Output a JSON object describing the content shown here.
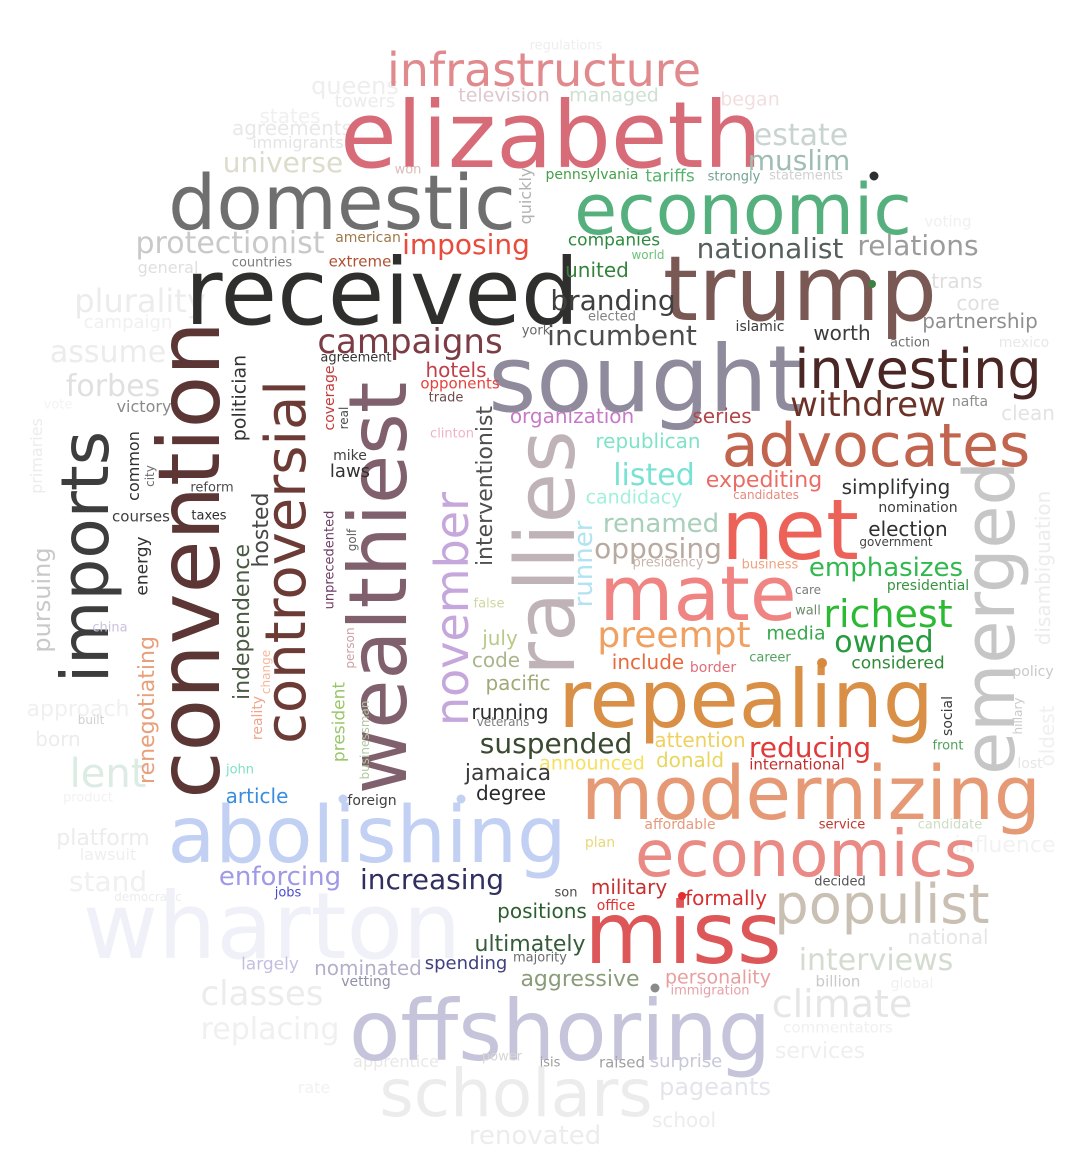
{
  "words": {
    "infrastructure": {
      "text": "infrastructure",
      "color": "#e08a8e"
    },
    "elizabeth": {
      "text": "elizabeth",
      "color": "#d86b78"
    },
    "domestic": {
      "text": "domestic",
      "color": "#6f6f6f"
    },
    "economic": {
      "text": "economic",
      "color": "#56b07d"
    },
    "received": {
      "text": "received",
      "color": "#2f302d"
    },
    "trump": {
      "text": "trump",
      "color": "#7a5854"
    },
    "sought": {
      "text": "sought",
      "color": "#8f8a9c"
    },
    "investing": {
      "text": "investing",
      "color": "#4a2724"
    },
    "advocates": {
      "text": "advocates",
      "color": "#c1654f"
    },
    "convention": {
      "text": "convention",
      "color": "#5b3634"
    },
    "imports": {
      "text": "imports",
      "color": "#3d3d3d"
    },
    "controversial": {
      "text": "controversial",
      "color": "#6c3b35"
    },
    "wealthiest": {
      "text": "wealthiest",
      "color": "#80606c"
    },
    "november": {
      "text": "november",
      "color": "#c6a7dc"
    },
    "rallies": {
      "text": "rallies",
      "color": "#bfb3b7"
    },
    "emerged": {
      "text": "emerged",
      "color": "#c6c6c6"
    },
    "net": {
      "text": "net",
      "color": "#ec6259"
    },
    "mate": {
      "text": "mate",
      "color": "#f08483"
    },
    "repealing": {
      "text": "repealing",
      "color": "#d98f46"
    },
    "modernizing": {
      "text": "modernizing",
      "color": "#e69975"
    },
    "abolishing": {
      "text": "abolishing",
      "color": "#c2d0f3"
    },
    "economics": {
      "text": "economics",
      "color": "#ea8a84"
    },
    "wharton": {
      "text": "wharton",
      "color": "#f0f0f8"
    },
    "miss": {
      "text": "miss",
      "color": "#dd5658"
    },
    "populist": {
      "text": "populist",
      "color": "#c9c0b3"
    },
    "offshoring": {
      "text": "offshoring",
      "color": "#c5c4da"
    },
    "scholars": {
      "text": "scholars",
      "color": "#ececec"
    },
    "protectionist": {
      "text": "protectionist",
      "color": "#c9c9c9"
    },
    "imposing": {
      "text": "imposing",
      "color": "#e74c3c"
    },
    "nationalist": {
      "text": "nationalist",
      "color": "#555f5c"
    },
    "relations": {
      "text": "relations",
      "color": "#9c9c9c"
    },
    "branding": {
      "text": "branding",
      "color": "#3f3f3f"
    },
    "incumbent": {
      "text": "incumbent",
      "color": "#4d4d4d"
    },
    "campaigns": {
      "text": "campaigns",
      "color": "#7b3c44"
    },
    "withdrew": {
      "text": "withdrew",
      "color": "#6b3228"
    },
    "queens": {
      "text": "queens",
      "color": "#eeeeee"
    },
    "towers": {
      "text": "towers",
      "color": "#ececec"
    },
    "regulations": {
      "text": "regulations",
      "color": "#eeeeee"
    },
    "television": {
      "text": "television",
      "color": "#dcc8cc"
    },
    "managed": {
      "text": "managed",
      "color": "#cfe0d2"
    },
    "began": {
      "text": "began",
      "color": "#f3dede"
    },
    "states": {
      "text": "states",
      "color": "#f0f0f0"
    },
    "agreements": {
      "text": "agreements",
      "color": "#e8e8e8"
    },
    "immigrants": {
      "text": "immigrants",
      "color": "#e4e4e4"
    },
    "estate": {
      "text": "estate",
      "color": "#c8d4d0"
    },
    "muslim": {
      "text": "muslim",
      "color": "#9fbdb0"
    },
    "universe": {
      "text": "universe",
      "color": "#dcdccc"
    },
    "won": {
      "text": "won",
      "color": "#d9bcb8"
    },
    "quickly": {
      "text": "quickly",
      "color": "#b1b1b1"
    },
    "pennsylvania": {
      "text": "pennsylvania",
      "color": "#45a046"
    },
    "tariffs": {
      "text": "tariffs",
      "color": "#56b36b"
    },
    "strongly": {
      "text": "strongly",
      "color": "#73a28f"
    },
    "statements": {
      "text": "statements",
      "color": "#d0d0d0"
    },
    "american": {
      "text": "american",
      "color": "#a0784a"
    },
    "companies": {
      "text": "companies",
      "color": "#2d8a3f"
    },
    "world": {
      "text": "world",
      "color": "#6cc07a"
    },
    "general": {
      "text": "general",
      "color": "#dfdfdf"
    },
    "countries": {
      "text": "countries",
      "color": "#7c7c7c"
    },
    "extreme": {
      "text": "extreme",
      "color": "#b05030"
    },
    "united": {
      "text": "united",
      "color": "#36833d"
    },
    "voting": {
      "text": "voting",
      "color": "#f0f0f0"
    },
    "plurality": {
      "text": "plurality",
      "color": "#ececec"
    },
    "campaign": {
      "text": "campaign",
      "color": "#f0f0f0"
    },
    "trans": {
      "text": "trans",
      "color": "#dedede"
    },
    "core": {
      "text": "core",
      "color": "#e0e0e0"
    },
    "partnership": {
      "text": "partnership",
      "color": "#8f8f8f"
    },
    "elected": {
      "text": "elected",
      "color": "#808080"
    },
    "york": {
      "text": "york",
      "color": "#676767"
    },
    "islamic": {
      "text": "islamic",
      "color": "#3d3d3d"
    },
    "worth": {
      "text": "worth",
      "color": "#3c3c3c"
    },
    "action": {
      "text": "action",
      "color": "#6b6b6b"
    },
    "mexico": {
      "text": "mexico",
      "color": "#e8e8e8"
    },
    "assume": {
      "text": "assume",
      "color": "#ececec"
    },
    "forbes": {
      "text": "forbes",
      "color": "#e0e0e0"
    },
    "politician": {
      "text": "politician",
      "color": "#333333"
    },
    "agreement": {
      "text": "agreement",
      "color": "#343434"
    },
    "hotels": {
      "text": "hotels",
      "color": "#c0404a"
    },
    "opponents": {
      "text": "opponents",
      "color": "#e8413c"
    },
    "trade": {
      "text": "trade",
      "color": "#6e4a4a"
    },
    "organization": {
      "text": "organization",
      "color": "#c779c8"
    },
    "series": {
      "text": "series",
      "color": "#b24648"
    },
    "nafta": {
      "text": "nafta",
      "color": "#8d8d8d"
    },
    "clean": {
      "text": "clean",
      "color": "#e3e3e3"
    },
    "victory": {
      "text": "victory",
      "color": "#8a8a8a"
    },
    "vote": {
      "text": "vote",
      "color": "#f3f3f3"
    },
    "primaries": {
      "text": "primaries",
      "color": "#ececec"
    },
    "coverage": {
      "text": "coverage",
      "color": "#c23b3b"
    },
    "real": {
      "text": "real",
      "color": "#4b4b4b"
    },
    "clinton": {
      "text": "clinton",
      "color": "#f0b2c2"
    },
    "interventionist": {
      "text": "interventionist",
      "color": "#4f4f4f"
    },
    "republican": {
      "text": "republican",
      "color": "#7fe3c8"
    },
    "listed": {
      "text": "listed",
      "color": "#78e2d4"
    },
    "expediting": {
      "text": "expediting",
      "color": "#ea6c64"
    },
    "candidates": {
      "text": "candidates",
      "color": "#e48a80"
    },
    "simplifying": {
      "text": "simplifying",
      "color": "#333333"
    },
    "common": {
      "text": "common",
      "color": "#2f2f2f"
    },
    "city": {
      "text": "city",
      "color": "#6d6d6d"
    },
    "mike": {
      "text": "mike",
      "color": "#404040"
    },
    "laws": {
      "text": "laws",
      "color": "#313131"
    },
    "reform": {
      "text": "reform",
      "color": "#4c4c4c"
    },
    "taxes": {
      "text": "taxes",
      "color": "#2e2e2e"
    },
    "courses": {
      "text": "courses",
      "color": "#3f3f3f"
    },
    "candidacy": {
      "text": "candidacy",
      "color": "#a2f0dc"
    },
    "nomination": {
      "text": "nomination",
      "color": "#3d3d3d"
    },
    "election": {
      "text": "election",
      "color": "#2f2f2f"
    },
    "government": {
      "text": "government",
      "color": "#444444"
    },
    "renamed": {
      "text": "renamed",
      "color": "#a7cfb9"
    },
    "opposing": {
      "text": "opposing",
      "color": "#b9aaa0"
    },
    "presidency": {
      "text": "presidency",
      "color": "#c8b4ac"
    },
    "runner": {
      "text": "runner",
      "color": "#b1e3f2"
    },
    "emphasizes": {
      "text": "emphasizes",
      "color": "#31b94f"
    },
    "business": {
      "text": "business",
      "color": "#efa27c"
    },
    "presidential": {
      "text": "presidential",
      "color": "#36933f"
    },
    "disambiguation": {
      "text": "disambiguation",
      "color": "#ececec"
    },
    "oldest": {
      "text": "oldest",
      "color": "#f0f0f0"
    },
    "pursuing": {
      "text": "pursuing",
      "color": "#c9c9c9"
    },
    "energy": {
      "text": "energy",
      "color": "#333333"
    },
    "hosted": {
      "text": "hosted",
      "color": "#474747"
    },
    "unprecedented": {
      "text": "unprecedented",
      "color": "#6f3c64"
    },
    "golf": {
      "text": "golf",
      "color": "#5f5f5f"
    },
    "independence": {
      "text": "independence",
      "color": "#4b5a43"
    },
    "false": {
      "text": "false",
      "color": "#cfd7a0"
    },
    "care": {
      "text": "care",
      "color": "#7c7c7c"
    },
    "richest": {
      "text": "richest",
      "color": "#2cb934"
    },
    "wall": {
      "text": "wall",
      "color": "#6c8c6a"
    },
    "owned": {
      "text": "owned",
      "color": "#279a3e"
    },
    "renegotiating": {
      "text": "renegotiating",
      "color": "#e8a07c"
    },
    "china": {
      "text": "china",
      "color": "#cac0e0"
    },
    "person": {
      "text": "person",
      "color": "#cba0a0"
    },
    "preempt": {
      "text": "preempt",
      "color": "#f0a060"
    },
    "media": {
      "text": "media",
      "color": "#38a84d"
    },
    "considered": {
      "text": "considered",
      "color": "#2f8a38"
    },
    "july": {
      "text": "july",
      "color": "#b9c98a"
    },
    "code": {
      "text": "code",
      "color": "#abb58c"
    },
    "include": {
      "text": "include",
      "color": "#e86a3c"
    },
    "border": {
      "text": "border",
      "color": "#e26d78"
    },
    "career": {
      "text": "career",
      "color": "#51a160"
    },
    "change": {
      "text": "change",
      "color": "#f6b89c"
    },
    "policy": {
      "text": "policy",
      "color": "#c9c9c9"
    },
    "approach": {
      "text": "approach",
      "color": "#f0f0f0"
    },
    "built": {
      "text": "built",
      "color": "#d0d0d0"
    },
    "born": {
      "text": "born",
      "color": "#ececec"
    },
    "reality": {
      "text": "reality",
      "color": "#f0a48c"
    },
    "president": {
      "text": "president",
      "color": "#9ac76b"
    },
    "pacific": {
      "text": "pacific",
      "color": "#a2a876"
    },
    "running": {
      "text": "running",
      "color": "#2f2f2f"
    },
    "veterans": {
      "text": "veterans",
      "color": "#7c7c7c"
    },
    "social": {
      "text": "social",
      "color": "#3a3a3a"
    },
    "hillary": {
      "text": "hillary",
      "color": "#cacaca"
    },
    "lost": {
      "text": "lost",
      "color": "#e6e6e6"
    },
    "suspended": {
      "text": "suspended",
      "color": "#3a4a30"
    },
    "attention": {
      "text": "attention",
      "color": "#f0d060"
    },
    "reducing": {
      "text": "reducing",
      "color": "#e03b3b"
    },
    "front": {
      "text": "front",
      "color": "#50a05a"
    },
    "lent": {
      "text": "lent",
      "color": "#dcece4"
    },
    "businessman": {
      "text": "businessman",
      "color": "#b2c8a0"
    },
    "john": {
      "text": "john",
      "color": "#7fe0c6"
    },
    "announced": {
      "text": "announced",
      "color": "#f5e060"
    },
    "donald": {
      "text": "donald",
      "color": "#e8d660"
    },
    "international": {
      "text": "international",
      "color": "#c32d2d"
    },
    "jamaica": {
      "text": "jamaica",
      "color": "#3b3b3b"
    },
    "degree": {
      "text": "degree",
      "color": "#2a2a2a"
    },
    "product": {
      "text": "product",
      "color": "#f2f2f2"
    },
    "article": {
      "text": "article",
      "color": "#3a8dde"
    },
    "foreign": {
      "text": "foreign",
      "color": "#3f3f3f"
    },
    "platform": {
      "text": "platform",
      "color": "#ececec"
    },
    "lawsuit": {
      "text": "lawsuit",
      "color": "#efefef"
    },
    "affordable": {
      "text": "affordable",
      "color": "#e59a7c"
    },
    "service": {
      "text": "service",
      "color": "#c2352f"
    },
    "candidate": {
      "text": "candidate",
      "color": "#cddcc3"
    },
    "influence": {
      "text": "influence",
      "color": "#f2f2f2"
    },
    "plan": {
      "text": "plan",
      "color": "#e8d878"
    },
    "stand": {
      "text": "stand",
      "color": "#f0f0f0"
    },
    "democratic": {
      "text": "democratic",
      "color": "#ececec"
    },
    "enforcing": {
      "text": "enforcing",
      "color": "#9f9ae6"
    },
    "jobs": {
      "text": "jobs",
      "color": "#4a4ad0"
    },
    "increasing": {
      "text": "increasing",
      "color": "#303060"
    },
    "son": {
      "text": "son",
      "color": "#4a4a4a"
    },
    "military": {
      "text": "military",
      "color": "#c83030"
    },
    "office": {
      "text": "office",
      "color": "#e03030"
    },
    "formally": {
      "text": "formally",
      "color": "#d83030"
    },
    "decided": {
      "text": "decided",
      "color": "#555555"
    },
    "positions": {
      "text": "positions",
      "color": "#2c5f2e"
    },
    "national": {
      "text": "national",
      "color": "#e6e6e6"
    },
    "ultimately": {
      "text": "ultimately",
      "color": "#345c39"
    },
    "majority": {
      "text": "majority",
      "color": "#6c6c6c"
    },
    "interviews": {
      "text": "interviews",
      "color": "#d3dccf"
    },
    "largely": {
      "text": "largely",
      "color": "#c4bee0"
    },
    "nominated": {
      "text": "nominated",
      "color": "#b2b0c8"
    },
    "spending": {
      "text": "spending",
      "color": "#404080"
    },
    "billion": {
      "text": "billion",
      "color": "#c9c9c9"
    },
    "global": {
      "text": "global",
      "color": "#f0f0f0"
    },
    "aggressive": {
      "text": "aggressive",
      "color": "#8a9c7a"
    },
    "personality": {
      "text": "personality",
      "color": "#e89e9e"
    },
    "immigration": {
      "text": "immigration",
      "color": "#e6a0a8"
    },
    "classes": {
      "text": "classes",
      "color": "#ececec"
    },
    "vetting": {
      "text": "vetting",
      "color": "#9090a8"
    },
    "climate": {
      "text": "climate",
      "color": "#e6e6e6"
    },
    "commentators": {
      "text": "commentators",
      "color": "#f0f0f0"
    },
    "replacing": {
      "text": "replacing",
      "color": "#f0f0f0"
    },
    "services": {
      "text": "services",
      "color": "#efefef"
    },
    "apprentice": {
      "text": "apprentice",
      "color": "#e8e8e8"
    },
    "power": {
      "text": "power",
      "color": "#d6d6d6"
    },
    "isis": {
      "text": "isis",
      "color": "#9c9c9c"
    },
    "raised": {
      "text": "raised",
      "color": "#a0a0a0"
    },
    "surprise": {
      "text": "surprise",
      "color": "#c8c8d8"
    },
    "pageants": {
      "text": "pageants",
      "color": "#e4e4ec"
    },
    "renovated": {
      "text": "renovated",
      "color": "#ececec"
    },
    "school": {
      "text": "school",
      "color": "#ececec"
    },
    "rate": {
      "text": "rate",
      "color": "#f2f2f2"
    }
  },
  "dots": {
    "a": {
      "color": "#2e2e2e"
    },
    "b": {
      "color": "#3f7f3f"
    },
    "c": {
      "color": "#d58a40"
    },
    "d": {
      "color": "#c2d0f3"
    },
    "e": {
      "color": "#c2d0f3"
    },
    "f": {
      "color": "#e03030"
    },
    "g": {
      "color": "#8a8a8a"
    }
  }
}
